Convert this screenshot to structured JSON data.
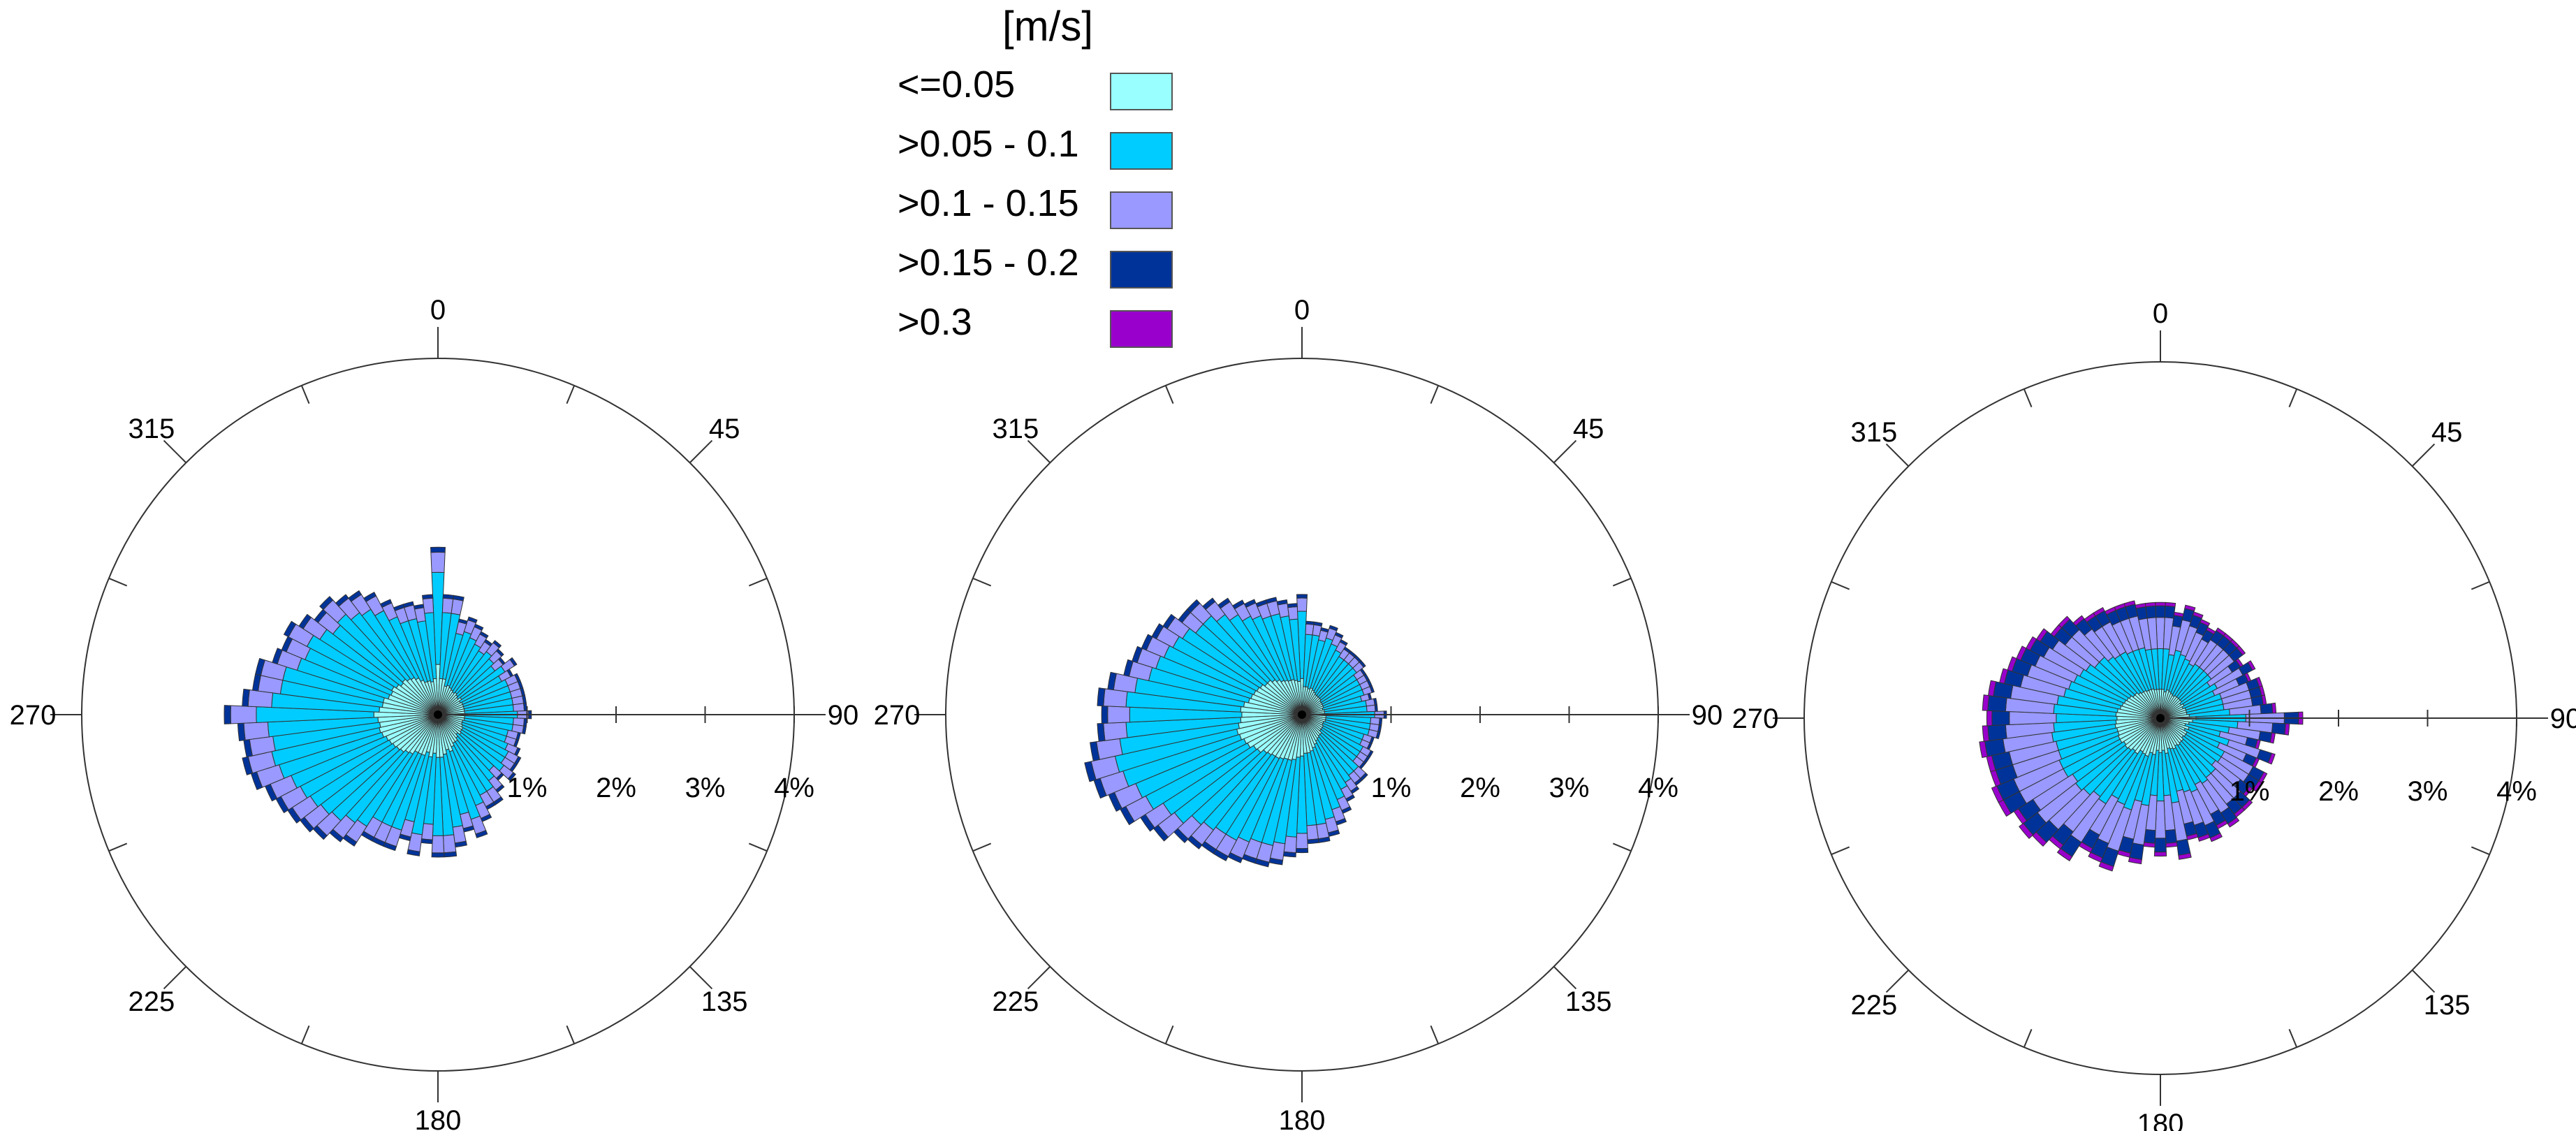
{
  "chart_data": [
    {
      "type": "wind-rose",
      "unit": "[m/s]",
      "bins": [
        {
          "label": "<=0.05",
          "color": "#99FFFF"
        },
        {
          "label": ">0.05 - 0.1",
          "color": "#00CCFF"
        },
        {
          "label": ">0.1 - 0.15",
          "color": "#9999FF"
        },
        {
          "label": ">0.15 - 0.2",
          "color": "#003399"
        },
        {
          "label": ">0.3",
          "color": "#9900CC"
        }
      ],
      "direction_labels": [
        "0",
        "45",
        "90",
        "135",
        "180",
        "225",
        "270",
        "315"
      ],
      "radial_ticks": [
        "1%",
        "2%",
        "3%",
        "4%"
      ],
      "rmax_percent": 4,
      "sector_width_deg": 5,
      "roses": [
        {
          "bins_by_direction_deg": [
            0,
            5,
            10,
            15,
            20,
            25,
            30,
            35,
            40,
            45,
            50,
            55,
            60,
            65,
            70,
            75,
            80,
            85,
            90,
            95,
            100,
            105,
            110,
            115,
            120,
            125,
            130,
            135,
            140,
            145,
            150,
            155,
            160,
            165,
            170,
            175,
            180,
            185,
            190,
            195,
            200,
            205,
            210,
            215,
            220,
            225,
            230,
            235,
            240,
            245,
            250,
            255,
            260,
            265,
            270,
            275,
            280,
            285,
            290,
            295,
            300,
            305,
            310,
            315,
            320,
            325,
            330,
            335,
            340,
            345,
            350,
            355
          ],
          "totals_percent": [
            1.88,
            1.35,
            1.35,
            1.1,
            1.15,
            1.1,
            1.05,
            1.0,
            1.05,
            1.0,
            0.95,
            1.05,
            0.95,
            1.0,
            1.0,
            1.0,
            1.0,
            1.0,
            1.05,
            1.0,
            1.0,
            0.95,
            0.95,
            1.0,
            1.05,
            1.05,
            1.1,
            1.0,
            1.1,
            1.2,
            1.2,
            1.3,
            1.45,
            1.35,
            1.5,
            1.6,
            1.6,
            1.45,
            1.6,
            1.45,
            1.6,
            1.6,
            1.6,
            1.75,
            1.8,
            1.9,
            1.95,
            2.0,
            2.05,
            2.1,
            2.2,
            2.25,
            2.2,
            2.25,
            2.4,
            2.2,
            2.1,
            2.1,
            1.95,
            1.9,
            1.95,
            1.85,
            1.75,
            1.8,
            1.7,
            1.65,
            1.55,
            1.4,
            1.3,
            1.3,
            1.25,
            1.35
          ]
        },
        {
          "bins_by_direction_deg": [
            0,
            5,
            10,
            15,
            20,
            25,
            30,
            35,
            40,
            45,
            50,
            55,
            60,
            65,
            70,
            75,
            80,
            85,
            90,
            95,
            100,
            105,
            110,
            115,
            120,
            125,
            130,
            135,
            140,
            145,
            150,
            155,
            160,
            165,
            170,
            175,
            180,
            185,
            190,
            195,
            200,
            205,
            210,
            215,
            220,
            225,
            230,
            235,
            240,
            245,
            250,
            255,
            260,
            265,
            270,
            275,
            280,
            285,
            290,
            295,
            300,
            305,
            310,
            315,
            320,
            325,
            330,
            335,
            340,
            345,
            350,
            355
          ],
          "totals_percent": [
            1.35,
            1.05,
            1.05,
            1.0,
            1.05,
            1.0,
            0.95,
            0.9,
            0.9,
            0.9,
            0.9,
            0.85,
            0.85,
            0.85,
            0.85,
            0.8,
            0.85,
            0.85,
            0.95,
            0.9,
            0.9,
            0.9,
            0.85,
            0.85,
            0.9,
            0.9,
            0.9,
            1.0,
            1.0,
            1.05,
            1.1,
            1.2,
            1.3,
            1.4,
            1.45,
            1.45,
            1.55,
            1.6,
            1.7,
            1.75,
            1.75,
            1.8,
            1.85,
            1.85,
            1.9,
            1.95,
            2.1,
            2.15,
            2.3,
            2.35,
            2.45,
            2.5,
            2.4,
            2.3,
            2.25,
            2.3,
            2.2,
            2.05,
            2.0,
            1.95,
            1.9,
            1.85,
            1.75,
            1.75,
            1.65,
            1.55,
            1.45,
            1.4,
            1.35,
            1.35,
            1.3,
            1.25
          ]
        },
        {
          "bins_by_direction_deg": [
            0,
            5,
            10,
            15,
            20,
            25,
            30,
            35,
            40,
            45,
            50,
            55,
            60,
            65,
            70,
            75,
            80,
            85,
            90,
            95,
            100,
            105,
            110,
            115,
            120,
            125,
            130,
            135,
            140,
            145,
            150,
            155,
            160,
            165,
            170,
            175,
            180,
            185,
            190,
            195,
            200,
            205,
            210,
            215,
            220,
            225,
            230,
            235,
            240,
            245,
            250,
            255,
            260,
            265,
            270,
            275,
            280,
            285,
            290,
            295,
            300,
            305,
            310,
            315,
            320,
            325,
            330,
            335,
            340,
            345,
            350,
            355
          ],
          "totals_percent": [
            1.3,
            1.3,
            1.2,
            1.3,
            1.25,
            1.2,
            1.15,
            1.2,
            1.2,
            1.2,
            1.2,
            1.1,
            1.2,
            1.1,
            1.2,
            1.2,
            1.2,
            1.3,
            1.6,
            1.45,
            1.3,
            1.15,
            1.35,
            1.2,
            1.35,
            1.35,
            1.3,
            1.4,
            1.4,
            1.45,
            1.4,
            1.5,
            1.45,
            1.4,
            1.6,
            1.45,
            1.55,
            1.45,
            1.65,
            1.6,
            1.8,
            1.75,
            1.7,
            1.9,
            1.85,
            1.95,
            2.0,
            1.95,
            2.05,
            2.05,
            2.0,
            2.0,
            2.05,
            2.0,
            1.95,
            2.0,
            1.95,
            1.85,
            1.8,
            1.75,
            1.7,
            1.65,
            1.55,
            1.55,
            1.45,
            1.4,
            1.4,
            1.35,
            1.35,
            1.35,
            1.3,
            1.3
          ]
        }
      ],
      "bin_fractions": [
        [
          0.3,
          0.55,
          0.12,
          0.03,
          0.0
        ],
        [
          0.3,
          0.56,
          0.11,
          0.03,
          0.0
        ],
        [
          0.25,
          0.35,
          0.27,
          0.1,
          0.03
        ]
      ]
    }
  ]
}
